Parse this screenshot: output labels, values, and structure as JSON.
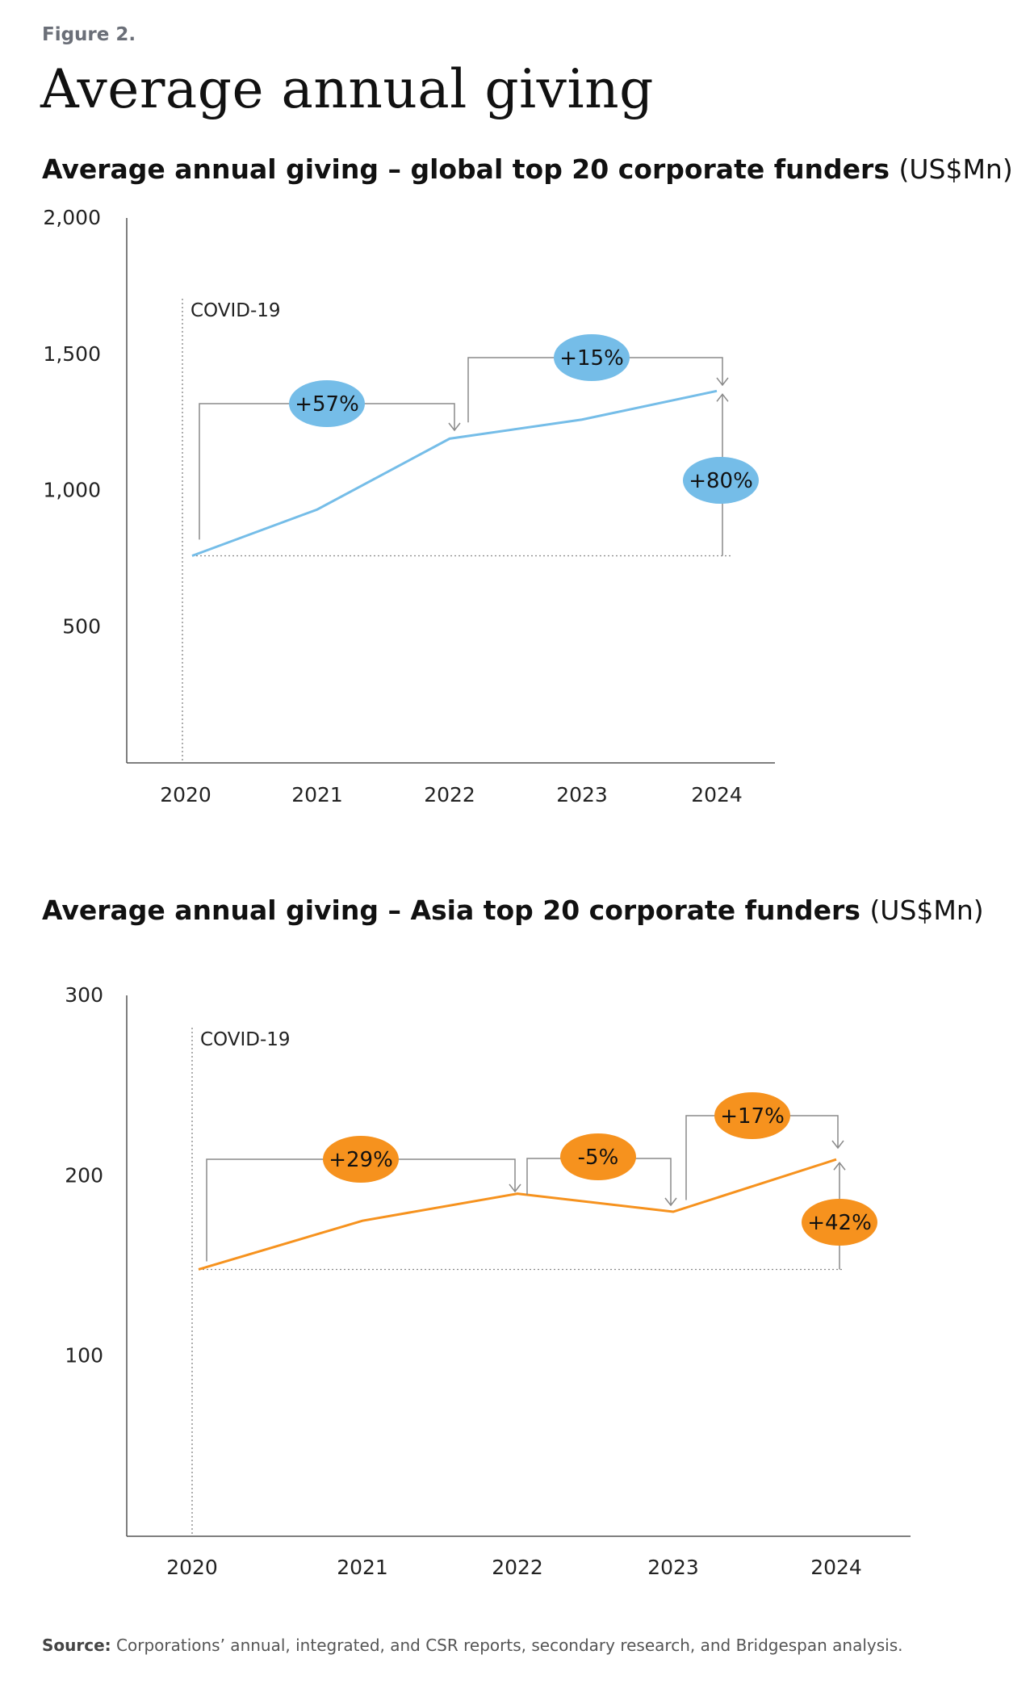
{
  "figure_label": "Figure 2.",
  "page_title": "Average annual giving",
  "source": {
    "label": "Source:",
    "text": "Corporations’ annual, integrated, and CSR reports, secondary research, and Bridgespan analysis."
  },
  "colors": {
    "global_series": "#75bde8",
    "asia_series": "#f6921e",
    "axis": "#555555",
    "annotation": "#8a8a8a"
  },
  "chart_data": [
    {
      "type": "line",
      "title": "Average annual giving – global top 20 corporate funders",
      "unit": "(US$Mn)",
      "x": [
        "2020",
        "2021",
        "2022",
        "2023",
        "2024"
      ],
      "series": [
        {
          "values": [
            760,
            930,
            1190,
            1260,
            1365
          ]
        }
      ],
      "ylim": [
        0,
        2000
      ],
      "yticks": [
        {
          "value": 500,
          "label": "500"
        },
        {
          "value": 1000,
          "label": "1,000"
        },
        {
          "value": 1500,
          "label": "1,500"
        },
        {
          "value": 2000,
          "label": "2,000"
        }
      ],
      "grid": false,
      "marker": {
        "label": "COVID-19"
      },
      "annotations": [
        {
          "label": "+57%",
          "from": "2020",
          "to": "2022"
        },
        {
          "label": "+15%",
          "from": "2022",
          "to": "2024"
        },
        {
          "label": "+80%",
          "from": "2020",
          "to": "2024"
        }
      ]
    },
    {
      "type": "line",
      "title": "Average annual giving – Asia top 20 corporate funders",
      "unit": "(US$Mn)",
      "x": [
        "2020",
        "2021",
        "2022",
        "2023",
        "2024"
      ],
      "series": [
        {
          "values": [
            148,
            175,
            190,
            180,
            209
          ]
        }
      ],
      "ylim": [
        0,
        300
      ],
      "yticks": [
        {
          "value": 100,
          "label": "100"
        },
        {
          "value": 200,
          "label": "200"
        },
        {
          "value": 300,
          "label": "300"
        }
      ],
      "grid": false,
      "marker": {
        "label": "COVID-19"
      },
      "annotations": [
        {
          "label": "+29%",
          "from": "2020",
          "to": "2022"
        },
        {
          "label": "-5%",
          "from": "2022",
          "to": "2023"
        },
        {
          "label": "+17%",
          "from": "2023",
          "to": "2024"
        },
        {
          "label": "+42%",
          "from": "2020",
          "to": "2024"
        }
      ]
    }
  ]
}
